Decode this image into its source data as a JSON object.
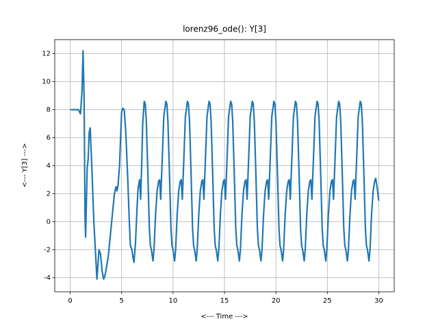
{
  "chart_data": {
    "type": "line",
    "title": "lorenz96_ode(): Y[3]",
    "xlabel": "<--- Time --->",
    "ylabel": "<--- Y[3] --->",
    "x": [
      0,
      0.4,
      0.8,
      1.0,
      1.15,
      1.25,
      1.35,
      1.45,
      1.5,
      1.65,
      1.75,
      1.85,
      1.95,
      2.1,
      2.3,
      2.45,
      2.6,
      2.8,
      2.95,
      3.1,
      3.25,
      3.4,
      3.7,
      3.9,
      4.3,
      4.45,
      4.55,
      4.65,
      4.8,
      4.9,
      5.0,
      5.1,
      5.25,
      5.4,
      5.6,
      5.75,
      5.85,
      6.0,
      6.1,
      6.2,
      6.35,
      6.5,
      6.6,
      6.75,
      6.85,
      6.95,
      7.05,
      7.2,
      7.3,
      7.4,
      7.55,
      7.7,
      7.8,
      7.9,
      8.05,
      8.15,
      8.3,
      8.45,
      8.6,
      8.7,
      8.8,
      8.95,
      9.1,
      9.3,
      9.4,
      9.5,
      9.65,
      9.8,
      9.9,
      10.0,
      10.15,
      10.25,
      10.4,
      10.55,
      10.7,
      10.8,
      10.9,
      11.05,
      11.2,
      11.4,
      11.5,
      11.6,
      11.75,
      11.9,
      12.0,
      12.1,
      12.25,
      12.35,
      12.5,
      12.65,
      12.8,
      12.9,
      13.0,
      13.15,
      13.3,
      13.5,
      13.6,
      13.7,
      13.85,
      14.0,
      14.1,
      14.2,
      14.35,
      14.45,
      14.6,
      14.75,
      14.9,
      15.0,
      15.1,
      15.25,
      15.4,
      15.6,
      15.7,
      15.8,
      15.95,
      16.1,
      16.2,
      16.3,
      16.45,
      16.55,
      16.7,
      16.85,
      17.0,
      17.1,
      17.2,
      17.35,
      17.5,
      17.7,
      17.8,
      17.9,
      18.05,
      18.2,
      18.3,
      18.4,
      18.55,
      18.65,
      18.8,
      18.95,
      19.1,
      19.2,
      19.3,
      19.45,
      19.6,
      19.8,
      19.9,
      20.0,
      20.15,
      20.3,
      20.4,
      20.5,
      20.65,
      20.75,
      20.9,
      21.05,
      21.2,
      21.3,
      21.4,
      21.55,
      21.7,
      21.9,
      22.0,
      22.1,
      22.25,
      22.4,
      22.5,
      22.6,
      22.75,
      22.85,
      23.0,
      23.15,
      23.3,
      23.4,
      23.5,
      23.65,
      23.8,
      24.0,
      24.1,
      24.2,
      24.35,
      24.5,
      24.6,
      24.7,
      24.85,
      24.95,
      25.1,
      25.25,
      25.4,
      25.5,
      25.6,
      25.75,
      25.9,
      26.1,
      26.2,
      26.3,
      26.45,
      26.6,
      26.7,
      26.8,
      26.95,
      27.05,
      27.2,
      27.35,
      27.5,
      27.6,
      27.7,
      27.85,
      28.0,
      28.2,
      28.3,
      28.4,
      28.55,
      28.7,
      28.8,
      28.9,
      29.05,
      29.15,
      29.3,
      29.45,
      29.6,
      29.7,
      29.85,
      30.0
    ],
    "values": [
      8,
      8,
      8,
      7.7,
      9.3,
      12.2,
      9,
      0,
      -1.1,
      3.8,
      4.5,
      6.4,
      6.7,
      4,
      0,
      -2,
      -4.1,
      -2,
      -2.3,
      -3.5,
      -4.1,
      -3.8,
      -2.5,
      -1,
      2,
      2.5,
      2.2,
      2.6,
      4,
      6,
      7.8,
      8.1,
      8,
      6.5,
      3,
      0,
      -1.7,
      -2,
      -2.5,
      -2.9,
      -1.5,
      1,
      2.4,
      3.0,
      1.6,
      4,
      7,
      8.6,
      8.4,
      7.2,
      3.5,
      -0.5,
      -1.7,
      -2.0,
      -2.8,
      -2.0,
      0.5,
      2.2,
      2.9,
      3.0,
      1.6,
      4.5,
      7.5,
      8.6,
      8.4,
      7.2,
      3.5,
      -0.5,
      -1.7,
      -2.0,
      -2.8,
      -2.0,
      0.5,
      2.2,
      2.9,
      3.0,
      1.6,
      4.5,
      7.5,
      8.6,
      8.4,
      7.2,
      3.5,
      -0.5,
      -1.7,
      -2.0,
      -2.8,
      -2.0,
      0.5,
      2.2,
      2.9,
      3.0,
      1.6,
      4.5,
      7.5,
      8.6,
      8.4,
      7.2,
      3.5,
      -0.5,
      -1.7,
      -2.0,
      -2.8,
      -2.0,
      0.5,
      2.2,
      2.9,
      3.0,
      1.6,
      4.5,
      7.5,
      8.6,
      8.4,
      7.2,
      3.5,
      -0.5,
      -1.7,
      -2.0,
      -2.8,
      -2.0,
      0.5,
      2.2,
      2.9,
      3.0,
      1.6,
      4.5,
      7.5,
      8.6,
      8.4,
      7.2,
      3.5,
      -0.5,
      -1.7,
      -2.0,
      -2.8,
      -2.0,
      0.5,
      2.2,
      2.9,
      3.0,
      1.6,
      4.5,
      7.5,
      8.6,
      8.4,
      7.2,
      3.5,
      -0.5,
      -1.7,
      -2.0,
      -2.8,
      -2.0,
      0.5,
      2.2,
      2.9,
      3.0,
      1.6,
      4.5,
      7.5,
      8.6,
      8.4,
      7.2,
      3.5,
      -0.5,
      -1.7,
      -2.0,
      -2.8,
      -2.0,
      0.5,
      2.2,
      2.9,
      3.0,
      1.6,
      4.5,
      7.5,
      8.6,
      8.4,
      7.2,
      3.5,
      -0.5,
      -1.7,
      -2.0,
      -2.8,
      -2.0,
      0.5,
      2.2,
      2.9,
      3.0,
      1.6,
      4.5,
      7.5,
      8.6,
      8.4,
      7.2,
      3.5,
      -0.5,
      -1.7,
      -2.0,
      -2.8,
      -2.0,
      0.5,
      2.2,
      2.9,
      3.0,
      1.6,
      4.5,
      7.5,
      8.6,
      8.4,
      7.2,
      3.5,
      -0.5,
      -1.7,
      -2.0,
      -2.8,
      -2.0,
      0.5,
      2.2,
      2.9,
      3.1,
      2.4,
      1.5
    ],
    "color": "#1f77b4",
    "xlim": [
      -1.5,
      31.5
    ],
    "xticks": [
      0,
      5,
      10,
      15,
      20,
      25,
      30
    ],
    "ylim": [
      -5,
      13
    ],
    "yticks": [
      -4,
      -2,
      0,
      2,
      4,
      6,
      8,
      10,
      12
    ],
    "grid": true
  }
}
